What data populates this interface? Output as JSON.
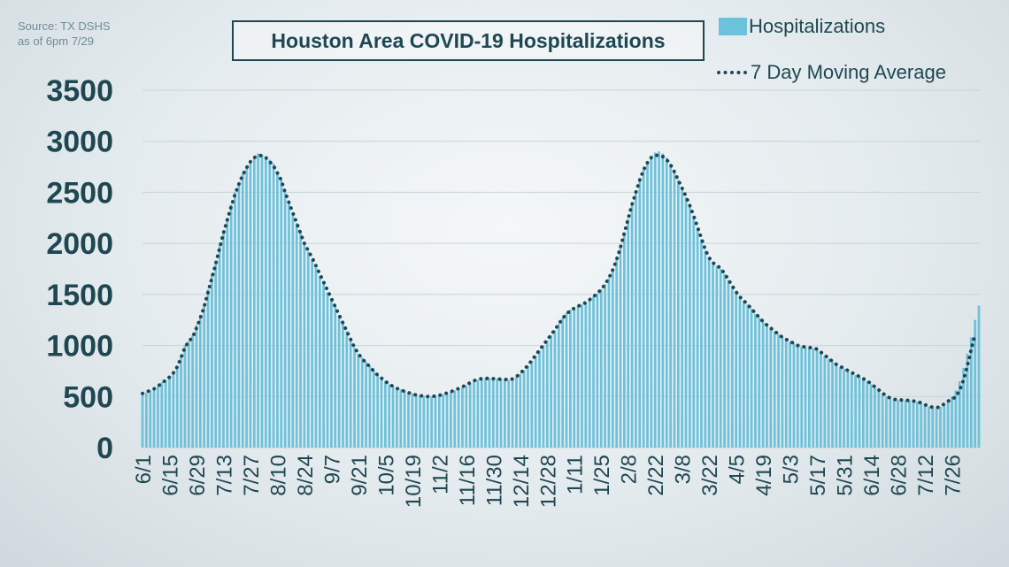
{
  "source_note": [
    "Source: TX DSHS",
    "as of 6pm 7/29"
  ],
  "colors": {
    "bar": "#6cc1db",
    "avg_line": "#1f4752",
    "text": "#1f4752",
    "grid": "#c8d3d8"
  },
  "chart_data": {
    "type": "bar",
    "title": "Houston Area COVID-19 Hospitalizations",
    "xlabel": "",
    "ylabel": "",
    "ylim": [
      0,
      3500
    ],
    "yticks": [
      0,
      500,
      1000,
      1500,
      2000,
      2500,
      3000,
      3500
    ],
    "grid": true,
    "legend_position": "top-right",
    "x_tick_labels": [
      "6/1",
      "6/15",
      "6/29",
      "7/13",
      "7/27",
      "8/10",
      "8/24",
      "9/7",
      "9/21",
      "10/5",
      "10/19",
      "11/2",
      "11/16",
      "11/30",
      "12/14",
      "12/28",
      "1/11",
      "1/25",
      "2/8",
      "2/22",
      "3/8",
      "3/22",
      "4/5",
      "4/19",
      "5/3",
      "5/17",
      "5/31",
      "6/14",
      "6/28",
      "7/12",
      "7/26"
    ],
    "x_tick_step_days": 14,
    "start_date": "6/1",
    "series": [
      {
        "name": "Hospitalizations",
        "kind": "bar",
        "sample_step_days": 2,
        "values": [
          520,
          540,
          560,
          580,
          600,
          640,
          660,
          700,
          740,
          800,
          900,
          1000,
          1040,
          1100,
          1200,
          1300,
          1400,
          1550,
          1700,
          1820,
          1980,
          2120,
          2250,
          2380,
          2500,
          2600,
          2680,
          2750,
          2810,
          2850,
          2880,
          2870,
          2840,
          2820,
          2780,
          2700,
          2620,
          2500,
          2400,
          2300,
          2200,
          2100,
          2000,
          1920,
          1840,
          1760,
          1680,
          1600,
          1520,
          1450,
          1380,
          1300,
          1220,
          1140,
          1060,
          980,
          920,
          880,
          840,
          800,
          760,
          720,
          680,
          650,
          620,
          600,
          580,
          570,
          555,
          540,
          530,
          520,
          510,
          505,
          500,
          500,
          505,
          510,
          520,
          530,
          545,
          560,
          575,
          590,
          610,
          630,
          650,
          665,
          675,
          680,
          680,
          678,
          675,
          670,
          668,
          665,
          670,
          690,
          720,
          760,
          800,
          850,
          900,
          950,
          1000,
          1050,
          1100,
          1150,
          1210,
          1270,
          1320,
          1350,
          1370,
          1390,
          1400,
          1420,
          1450,
          1480,
          1510,
          1550,
          1600,
          1660,
          1740,
          1840,
          1960,
          2100,
          2240,
          2380,
          2500,
          2620,
          2720,
          2800,
          2860,
          2890,
          2900,
          2880,
          2840,
          2780,
          2700,
          2620,
          2540,
          2450,
          2360,
          2260,
          2150,
          2040,
          1930,
          1860,
          1810,
          1780,
          1750,
          1700,
          1640,
          1580,
          1520,
          1470,
          1440,
          1400,
          1360,
          1310,
          1270,
          1230,
          1200,
          1170,
          1140,
          1110,
          1080,
          1060,
          1040,
          1020,
          1000,
          990,
          980,
          975,
          970,
          960,
          930,
          900,
          870,
          840,
          810,
          790,
          770,
          750,
          730,
          710,
          690,
          670,
          650,
          620,
          590,
          560,
          530,
          500,
          480,
          470,
          465,
          465,
          463,
          460,
          455,
          450,
          440,
          420,
          400,
          390,
          385,
          400,
          430,
          460,
          500,
          560,
          650,
          780,
          920,
          1080,
          1250,
          1390
        ]
      },
      {
        "name": "7 Day Moving Average",
        "kind": "dotted-line",
        "sample_step_days": 2,
        "values": [
          530,
          545,
          560,
          575,
          600,
          630,
          660,
          690,
          730,
          790,
          880,
          980,
          1040,
          1080,
          1170,
          1270,
          1380,
          1520,
          1660,
          1800,
          1950,
          2100,
          2230,
          2360,
          2480,
          2580,
          2670,
          2740,
          2800,
          2840,
          2860,
          2860,
          2840,
          2800,
          2760,
          2690,
          2620,
          2500,
          2400,
          2300,
          2200,
          2100,
          2000,
          1930,
          1860,
          1780,
          1700,
          1620,
          1540,
          1460,
          1380,
          1300,
          1220,
          1140,
          1060,
          980,
          920,
          870,
          830,
          790,
          750,
          710,
          680,
          650,
          620,
          600,
          580,
          565,
          550,
          538,
          525,
          515,
          508,
          504,
          500,
          500,
          505,
          512,
          522,
          535,
          548,
          562,
          578,
          595,
          615,
          635,
          655,
          668,
          675,
          678,
          677,
          675,
          672,
          670,
          668,
          666,
          672,
          695,
          725,
          765,
          805,
          855,
          905,
          955,
          1005,
          1055,
          1105,
          1155,
          1210,
          1265,
          1310,
          1340,
          1365,
          1385,
          1400,
          1420,
          1448,
          1478,
          1510,
          1548,
          1598,
          1660,
          1740,
          1840,
          1960,
          2100,
          2240,
          2380,
          2500,
          2620,
          2720,
          2790,
          2840,
          2860,
          2865,
          2850,
          2820,
          2770,
          2700,
          2620,
          2540,
          2460,
          2370,
          2270,
          2160,
          2050,
          1940,
          1860,
          1810,
          1785,
          1755,
          1705,
          1645,
          1585,
          1525,
          1475,
          1440,
          1400,
          1360,
          1315,
          1275,
          1235,
          1200,
          1170,
          1140,
          1110,
          1080,
          1060,
          1040,
          1020,
          1000,
          990,
          985,
          980,
          975,
          965,
          935,
          905,
          875,
          845,
          815,
          795,
          775,
          755,
          735,
          715,
          695,
          675,
          655,
          625,
          595,
          565,
          535,
          505,
          485,
          472,
          468,
          466,
          464,
          461,
          456,
          448,
          438,
          420,
          405,
          395,
          390,
          402,
          428,
          455,
          470,
          500,
          560,
          660,
          800,
          960,
          1110
        ]
      }
    ]
  }
}
